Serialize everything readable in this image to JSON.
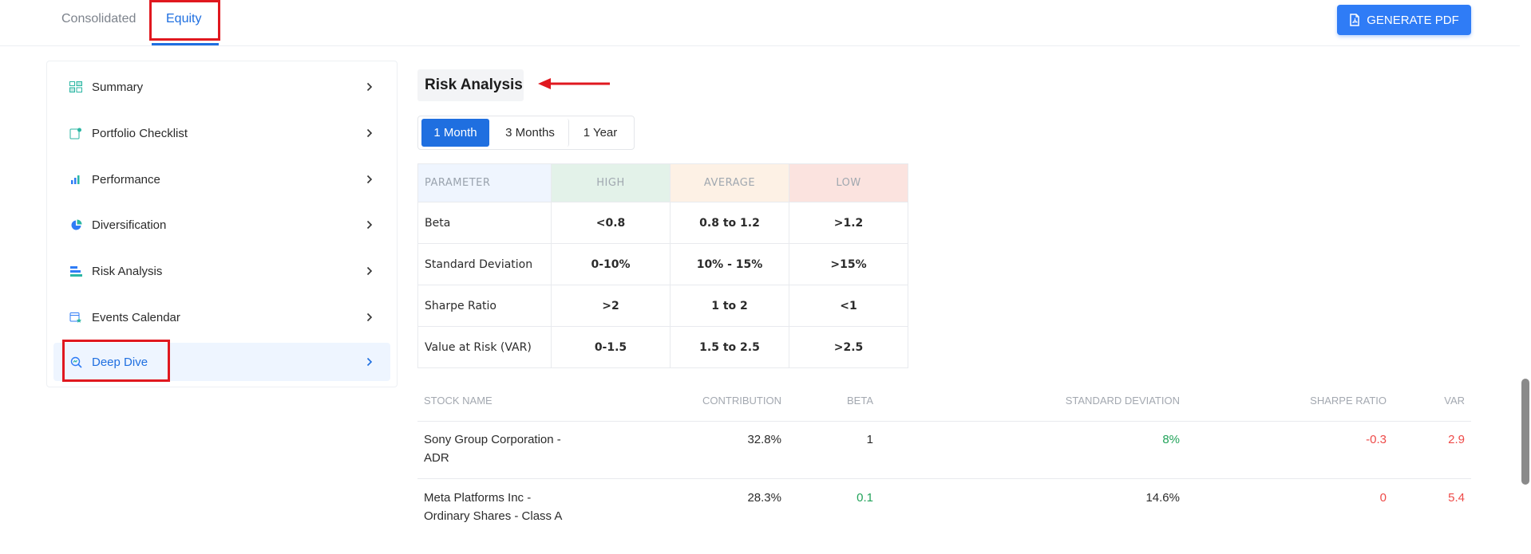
{
  "tabs": {
    "consolidated": "Consolidated",
    "equity": "Equity"
  },
  "generate_pdf": {
    "label": "GENERATE PDF",
    "icon": "pdf-file-icon"
  },
  "sidebar": {
    "items": [
      {
        "label": "Summary",
        "icon": "summary-icon"
      },
      {
        "label": "Portfolio Checklist",
        "icon": "checklist-icon"
      },
      {
        "label": "Performance",
        "icon": "bar-chart-icon"
      },
      {
        "label": "Diversification",
        "icon": "pie-chart-icon"
      },
      {
        "label": "Risk Analysis",
        "icon": "risk-bars-icon"
      },
      {
        "label": "Events Calendar",
        "icon": "calendar-star-icon"
      },
      {
        "label": "Deep Dive",
        "icon": "magnify-icon"
      }
    ],
    "active": "Deep Dive"
  },
  "main": {
    "title": "Risk Analysis",
    "periods": [
      "1 Month",
      "3 Months",
      "1 Year"
    ],
    "selected_period": "1 Month"
  },
  "parameter_table": {
    "headers": [
      "PARAMETER",
      "HIGH",
      "AVERAGE",
      "LOW"
    ],
    "rows": [
      [
        "Beta",
        "<0.8",
        "0.8 to 1.2",
        ">1.2"
      ],
      [
        "Standard Deviation",
        "0-10%",
        "10% - 15%",
        ">15%"
      ],
      [
        "Sharpe Ratio",
        ">2",
        "1 to 2",
        "<1"
      ],
      [
        "Value at Risk (VAR)",
        "0-1.5",
        "1.5 to 2.5",
        ">2.5"
      ]
    ]
  },
  "stock_table": {
    "headers": [
      "STOCK NAME",
      "CONTRIBUTION",
      "BETA",
      "STANDARD DEVIATION",
      "SHARPE RATIO",
      "VAR"
    ],
    "rows": [
      {
        "name": "Sony Group Corporation - ADR",
        "contribution": "32.8%",
        "beta": "1",
        "sd": "8%",
        "sharpe": "-0.3",
        "var": "2.9"
      },
      {
        "name": "Meta Platforms Inc - Ordinary Shares - Class A",
        "contribution": "28.3%",
        "beta": "0.1",
        "sd": "14.6%",
        "sharpe": "0",
        "var": "5.4"
      }
    ]
  },
  "colors": {
    "accent": "#1f6fe0",
    "highlight_box": "#e0181f",
    "positive": "#22a35a",
    "negative": "#ee4a48"
  }
}
